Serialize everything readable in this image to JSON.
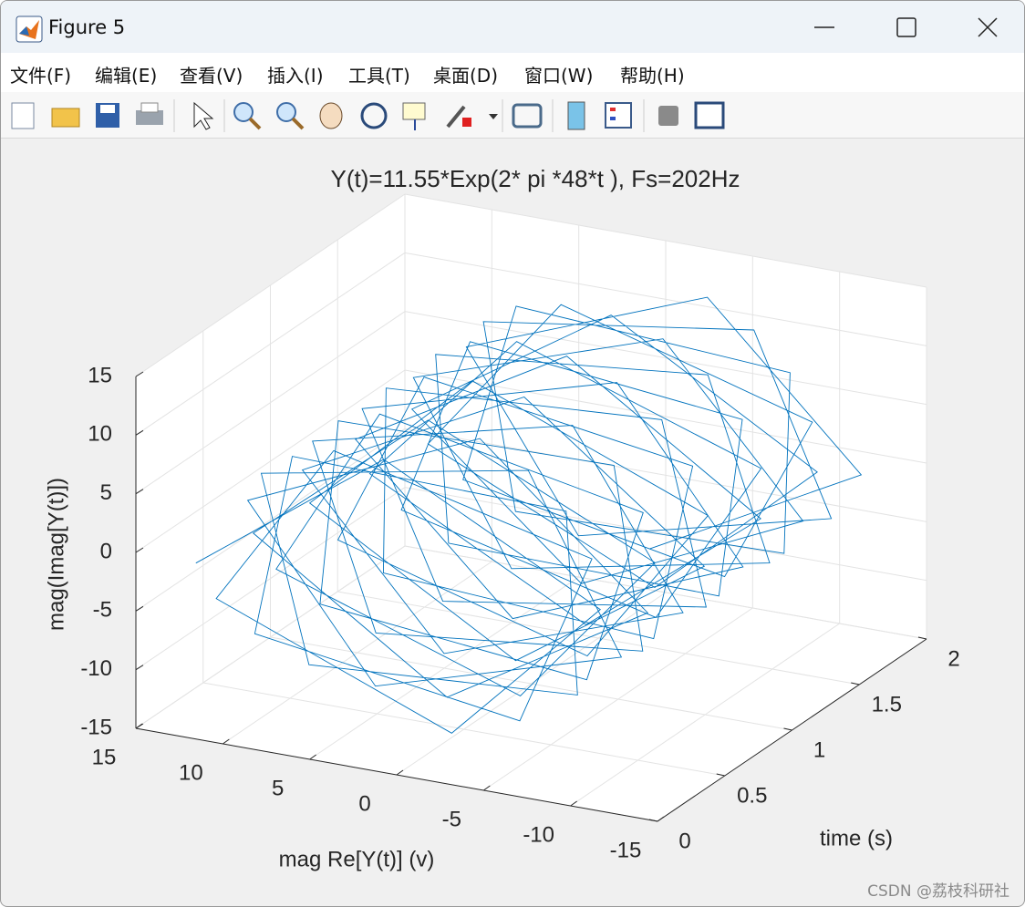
{
  "window": {
    "title": "Figure 5",
    "menu": [
      "文件(F)",
      "编辑(E)",
      "查看(V)",
      "插入(I)",
      "工具(T)",
      "桌面(D)",
      "窗口(W)",
      "帮助(H)"
    ]
  },
  "watermark": "CSDN @荔枝科研社",
  "chart_data": {
    "type": "line3d",
    "title": "Y(t)=11.55*Exp(2* pi *48*t ),  Fs=202Hz",
    "xlabel": "time (s)",
    "ylabel": "mag Re[Y(t)] (v)",
    "zlabel": "mag(Imag[Y(t)])",
    "xlim": [
      0,
      2
    ],
    "xticks": [
      0,
      0.5,
      1,
      1.5,
      2
    ],
    "ylim": [
      -15,
      15
    ],
    "yticks": [
      15,
      10,
      5,
      0,
      -5,
      -10,
      -15
    ],
    "zlim": [
      -15,
      15
    ],
    "zticks": [
      -15,
      -10,
      -5,
      0,
      5,
      10,
      15
    ],
    "grid": true,
    "x": [
      0,
      0.02,
      0.04,
      0.06,
      0.08,
      0.1,
      0.12,
      0.14,
      0.16,
      0.18,
      0.2,
      0.22,
      0.24,
      0.26,
      0.28,
      0.3,
      0.32,
      0.34,
      0.36,
      0.38,
      0.4,
      0.42,
      0.44,
      0.46,
      0.48,
      0.5,
      0.52,
      0.54,
      0.56,
      0.58,
      0.6,
      0.62,
      0.64,
      0.66,
      0.68,
      0.7,
      0.72,
      0.74,
      0.76,
      0.78,
      0.8,
      0.82,
      0.84,
      0.86,
      0.88,
      0.9,
      0.92,
      0.94,
      0.96,
      0.98,
      1,
      1.02,
      1.04,
      1.06,
      1.08,
      1.1,
      1.12,
      1.14,
      1.16,
      1.18,
      1.2,
      1.22,
      1.24,
      1.26,
      1.28,
      1.3,
      1.32,
      1.34,
      1.36,
      1.38,
      1.4,
      1.42,
      1.44,
      1.46,
      1.48,
      1.5,
      1.52,
      1.54,
      1.56,
      1.58,
      1.6,
      1.62,
      1.64,
      1.66,
      1.68,
      1.7,
      1.72,
      1.74,
      1.76,
      1.78,
      1.8,
      1.82,
      1.84,
      1.86,
      1.88,
      1.9,
      1.92,
      1.94,
      1.96,
      1.98,
      2
    ],
    "series": [
      {
        "color": "#0072bd",
        "y": [
          11.55,
          0.9,
          -11.4,
          -2.7,
          11.0,
          4.4,
          -10.3,
          -6.0,
          9.4,
          7.4,
          -8.2,
          -8.7,
          6.9,
          9.8,
          -5.4,
          -10.6,
          3.7,
          11.2,
          -2.0,
          -11.5,
          0.2,
          11.5,
          1.6,
          -11.3,
          -3.4,
          10.8,
          5.0,
          -10.0,
          -6.6,
          8.9,
          8.0,
          -7.7,
          -9.2,
          6.3,
          10.1,
          -4.7,
          -10.9,
          3.0,
          11.3,
          -1.3,
          -11.5,
          -0.5,
          11.5,
          2.3,
          -11.1,
          -4.0,
          10.5,
          5.7,
          -9.6,
          -7.2,
          8.5,
          8.5,
          -7.2,
          -9.6,
          5.7,
          10.5,
          -4.0,
          -11.1,
          2.3,
          11.5,
          -0.5,
          -11.5,
          -1.3,
          11.3,
          3.0,
          -10.9,
          -4.7,
          10.1,
          6.3,
          -9.2,
          -7.7,
          8.0,
          8.9,
          -6.6,
          -10.0,
          5.0,
          10.8,
          -3.4,
          -11.3,
          1.6,
          11.5,
          0.2,
          -11.5,
          -2.0,
          11.2,
          3.7,
          -10.6,
          -5.4,
          9.8,
          6.9,
          -8.7,
          -8.2,
          7.4,
          9.4,
          -6.0,
          -10.3,
          4.4,
          11.0,
          -2.7,
          -11.4,
          0.9
        ],
        "z": [
          0,
          11.5,
          1.8,
          -11.2,
          -3.5,
          10.7,
          5.2,
          -9.9,
          -6.7,
          8.8,
          8.1,
          -7.6,
          -9.3,
          6.1,
          10.2,
          -4.5,
          -10.9,
          2.8,
          11.4,
          -1.1,
          -11.55,
          -0.7,
          11.4,
          2.5,
          -11.1,
          -4.2,
          10.4,
          5.8,
          -9.5,
          -7.3,
          8.4,
          8.6,
          -7.0,
          -9.7,
          5.5,
          10.6,
          -3.9,
          -11.2,
          2.1,
          11.5,
          -0.4,
          -11.5,
          -1.4,
          11.3,
          3.2,
          -10.8,
          -4.9,
          10.1,
          6.4,
          -9.1,
          -7.8,
          7.8,
          9.1,
          -6.4,
          -10.1,
          4.9,
          10.8,
          -3.2,
          -11.3,
          1.4,
          11.5,
          0.4,
          -11.5,
          -2.1,
          11.2,
          3.9,
          -10.6,
          -5.5,
          9.7,
          7.0,
          -8.6,
          -8.4,
          7.3,
          9.5,
          -5.8,
          -10.4,
          4.2,
          11.1,
          -2.5,
          -11.4,
          0.7,
          11.55,
          1.1,
          -11.4,
          -2.8,
          10.9,
          4.5,
          -10.2,
          -6.1,
          9.3,
          7.6,
          -8.1,
          -8.8,
          6.7,
          9.9,
          -5.2,
          -10.7,
          3.5,
          11.2,
          -1.8,
          -11.5
        ]
      }
    ]
  }
}
